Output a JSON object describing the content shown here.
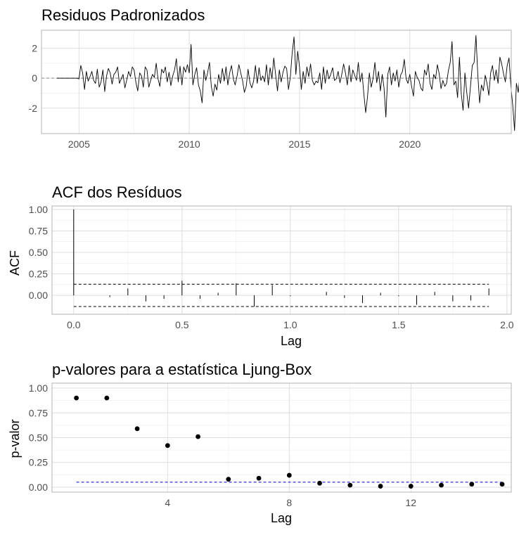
{
  "chart_data": [
    {
      "type": "line",
      "title": "Residuos Padronizados",
      "xlabel": "",
      "ylabel": "",
      "xlim": [
        2003.3,
        2024.6
      ],
      "ylim": [
        -3.7,
        3.2
      ],
      "xticks": [
        2005,
        2010,
        2015,
        2020
      ],
      "xtick_labels": [
        "2005",
        "2010",
        "2015",
        "2020"
      ],
      "yticks": [
        -2,
        0,
        2
      ],
      "ytick_labels": [
        "-2",
        "0",
        "2"
      ],
      "grid": true,
      "reference_line": 0,
      "series": [
        {
          "start": 2004.0,
          "step": 0.08333,
          "values": [
            0,
            0,
            0,
            0,
            0,
            0,
            0,
            0,
            0,
            0,
            0,
            0,
            -0.05,
            0.85,
            0.35,
            -0.75,
            0.45,
            -0.2,
            0.1,
            0.45,
            -0.15,
            -0.35,
            0.6,
            -0.6,
            -0.25,
            0.55,
            -0.9,
            0.15,
            0.65,
            0.35,
            -0.4,
            0.25,
            0.4,
            0.75,
            -0.35,
            -0.05,
            0.25,
            -0.65,
            -0.1,
            0.45,
            0.1,
            0.75,
            0.55,
            -0.3,
            -0.85,
            0.35,
            0.15,
            -0.6,
            0.75,
            0.55,
            -0.6,
            -0.15,
            0.25,
            0.05,
            1.0,
            -0.05,
            -0.55,
            0.6,
            0.35,
            0.75,
            -0.25,
            0.4,
            -0.5,
            0.15,
            0.55,
            1.3,
            -0.25,
            0.8,
            -0.45,
            0.75,
            0.4,
            0.9,
            0.35,
            2.25,
            -0.45,
            0.25,
            0.7,
            -0.45,
            -0.85,
            -1.65,
            0.55,
            -0.15,
            0.35,
            1.05,
            -0.55,
            -1.2,
            -0.4,
            -0.8,
            0.25,
            -0.35,
            0.65,
            -0.2,
            0.75,
            -0.45,
            0.35,
            0.85,
            -0.05,
            -0.45,
            0.15,
            0.9,
            0.35,
            -0.15,
            -0.95,
            -0.55,
            0.6,
            -0.3,
            -0.65,
            -0.2,
            0.85,
            -0.35,
            0.7,
            -0.15,
            0.15,
            -0.25,
            0.9,
            -0.45,
            0.7,
            -0.05,
            1.35,
            0.25,
            -0.85,
            0.55,
            -0.25,
            0.4,
            0.8,
            0.65,
            -0.75,
            0.05,
            1.7,
            2.75,
            0.25,
            1.8,
            0.75,
            -0.75,
            0.45,
            -0.35,
            0.75,
            0.1,
            0.95,
            -0.15,
            -0.45,
            -0.2,
            -0.3,
            0.35,
            -0.75,
            0.75,
            -0.35,
            0.55,
            -0.05,
            0.25,
            0.7,
            -0.15,
            -0.05,
            0.45,
            -0.3,
            0.25,
            0.95,
            0.35,
            -0.45,
            0.85,
            -0.25,
            0.55,
            0.2,
            -0.15,
            1.05,
            -0.25,
            0.35,
            -1.05,
            -2.3,
            -1.25,
            0.35,
            -0.6,
            -0.05,
            1.05,
            -0.3,
            0.45,
            -0.85,
            0.25,
            -0.65,
            -2.6,
            0.25,
            0.75,
            -0.45,
            0.35,
            -0.2,
            0.55,
            -0.6,
            0.2,
            0.45,
            1.25,
            -0.05,
            -0.35,
            0.25,
            -0.55,
            -1.2,
            0.45,
            0.05,
            -0.15,
            -0.65,
            -0.85,
            0.55,
            0.2,
            0.95,
            -0.35,
            -0.75,
            0.25,
            -0.05,
            0.9,
            0.3,
            -0.7,
            -0.15,
            -0.55,
            -0.35,
            0.5,
            1.05,
            2.45,
            -0.45,
            -0.2,
            -1.3,
            1.4,
            -1.05,
            -2.15,
            0.35,
            -0.95,
            -2.0,
            -0.55,
            0.85,
            1.05,
            2.85,
            0.25,
            -1.65,
            -0.45,
            -0.85,
            0.2,
            -0.35,
            -1.15,
            0.35,
            0.85,
            -0.15,
            0.55,
            -0.35,
            1.4,
            0.95,
            0.3,
            -0.25,
            0.85,
            1.35,
            -0.55,
            -1.8,
            -3.5,
            -0.35,
            -0.95,
            0.25,
            -0.05,
            0.65,
            -1.05,
            -1.35,
            0.35,
            -0.45,
            -1.7,
            -2.15,
            -1.4,
            -0.25,
            0.55,
            -2.55,
            0.45,
            -1.65,
            -0.4,
            0.75,
            -0.95,
            0.25,
            0.55,
            -1.25,
            1.05,
            -0.75,
            1.85,
            0.35,
            -0.15,
            1.35,
            0.95,
            1.8,
            2.95,
            -0.55,
            -1.2,
            2.4,
            0.75,
            1.95,
            -0.35,
            2.4,
            0.25
          ]
        }
      ]
    },
    {
      "type": "bar",
      "title": "ACF dos Resíduos",
      "xlabel": "Lag",
      "ylabel": "ACF",
      "xlim": [
        -0.1,
        2.02
      ],
      "ylim": [
        -0.22,
        1.04
      ],
      "xticks": [
        0,
        0.5,
        1.0,
        1.5,
        2.0
      ],
      "xtick_labels": [
        "0.0",
        "0.5",
        "1.0",
        "1.5",
        "2.0"
      ],
      "yticks": [
        0,
        0.25,
        0.5,
        0.75,
        1.0
      ],
      "ytick_labels": [
        "0.00",
        "0.25",
        "0.50",
        "0.75",
        "1.00"
      ],
      "grid": true,
      "confidence_bounds": [
        0.13,
        -0.13
      ],
      "x": [
        0,
        0.0833,
        0.1667,
        0.25,
        0.3333,
        0.4167,
        0.5,
        0.5833,
        0.6667,
        0.75,
        0.8333,
        0.9167,
        1.0,
        1.0833,
        1.1667,
        1.25,
        1.3333,
        1.4167,
        1.5,
        1.5833,
        1.6667,
        1.75,
        1.8333,
        1.9167
      ],
      "values": [
        1.0,
        0.0,
        -0.02,
        0.08,
        -0.07,
        -0.04,
        0.17,
        -0.04,
        0.03,
        0.14,
        -0.13,
        0.12,
        -0.01,
        0.0,
        0.04,
        -0.03,
        -0.09,
        0.03,
        -0.01,
        -0.11,
        0.04,
        -0.07,
        -0.06,
        0.08
      ]
    },
    {
      "type": "scatter",
      "title": "p-valores para a estatística Ljung-Box",
      "xlabel": "Lag",
      "ylabel": "p-valor",
      "xlim": [
        0.2,
        15.3
      ],
      "ylim": [
        -0.05,
        1.05
      ],
      "xticks": [
        4,
        8,
        12
      ],
      "xtick_labels": [
        "4",
        "8",
        "12"
      ],
      "yticks": [
        0,
        0.25,
        0.5,
        0.75,
        1.0
      ],
      "ytick_labels": [
        "0.00",
        "0.25",
        "0.50",
        "0.75",
        "1.00"
      ],
      "grid": true,
      "reference_line": 0.05,
      "x": [
        1,
        2,
        3,
        4,
        5,
        6,
        7,
        8,
        9,
        10,
        11,
        12,
        13,
        14,
        15
      ],
      "values": [
        0.9,
        0.9,
        0.59,
        0.42,
        0.51,
        0.08,
        0.09,
        0.12,
        0.04,
        0.02,
        0.01,
        0.01,
        0.02,
        0.03,
        0.03
      ]
    }
  ]
}
